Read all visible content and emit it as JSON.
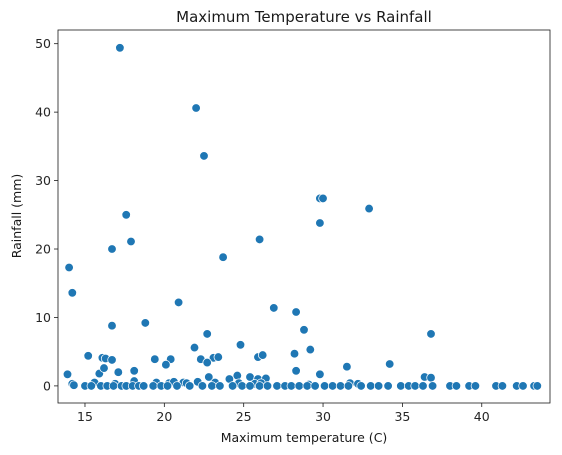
{
  "chart_data": {
    "type": "scatter",
    "title": "Maximum Temperature vs Rainfall",
    "xlabel": "Maximum temperature (C)",
    "ylabel": "Rainfall (mm)",
    "xlim": [
      13.3,
      44.3
    ],
    "ylim": [
      -2.5,
      52.0
    ],
    "xticks": [
      15,
      20,
      25,
      30,
      35,
      40
    ],
    "yticks": [
      0,
      10,
      20,
      30,
      40,
      50
    ],
    "grid": false,
    "marker_color": "#1f77b4",
    "marker_edge": "#ffffff",
    "x": [
      17.2,
      22.0,
      22.5,
      29.8,
      30.0,
      29.8,
      32.9,
      17.6,
      26.0,
      17.9,
      16.7,
      23.7,
      14.0,
      14.2,
      20.9,
      26.9,
      28.3,
      16.7,
      18.8,
      28.8,
      22.7,
      36.8,
      21.9,
      24.8,
      29.2,
      29.8,
      16.1,
      25.9,
      26.2,
      15.2,
      16.3,
      16.7,
      19.4,
      20.4,
      20.1,
      22.3,
      23.1,
      22.7,
      15.9,
      23.4,
      31.5,
      34.2,
      28.2,
      28.3,
      13.9,
      16.2,
      17.1,
      18.1,
      22.8,
      24.1,
      24.6,
      25.4,
      25.9,
      26.4,
      36.4,
      36.8,
      14.2,
      14.3,
      15.6,
      16.9,
      18.1,
      19.5,
      20.3,
      20.6,
      21.2,
      21.4,
      22.1,
      23.2,
      24.7,
      25.7,
      26.1,
      29.1,
      31.7,
      32.2,
      15.0,
      15.4,
      16.0,
      16.4,
      16.8,
      17.3,
      17.6,
      18.0,
      18.4,
      18.7,
      19.3,
      19.8,
      20.2,
      20.8,
      21.6,
      22.4,
      23.0,
      23.5,
      24.3,
      24.9,
      25.4,
      26.0,
      26.5,
      27.1,
      27.6,
      28.0,
      28.5,
      29.0,
      29.5,
      30.1,
      30.6,
      31.1,
      31.6,
      32.4,
      33.0,
      33.5,
      34.1,
      34.9,
      35.4,
      35.8,
      36.3,
      36.9,
      38.0,
      38.4,
      39.2,
      39.6,
      40.9,
      41.3,
      42.2,
      42.6,
      43.3,
      43.5
    ],
    "y": [
      49.4,
      40.6,
      33.6,
      27.4,
      27.4,
      23.8,
      25.9,
      25.0,
      21.4,
      21.1,
      20.0,
      18.8,
      17.3,
      13.6,
      12.2,
      11.4,
      10.8,
      8.8,
      9.2,
      8.2,
      7.6,
      7.6,
      5.6,
      6.0,
      5.3,
      1.7,
      4.1,
      4.2,
      4.5,
      4.4,
      4.0,
      3.8,
      3.9,
      3.9,
      3.1,
      3.9,
      4.1,
      3.4,
      1.8,
      4.2,
      2.8,
      3.2,
      4.7,
      2.2,
      1.7,
      2.6,
      2.0,
      2.2,
      1.3,
      1.0,
      1.5,
      1.3,
      1.0,
      1.1,
      1.3,
      1.2,
      0.3,
      0.1,
      0.5,
      0.3,
      0.7,
      0.5,
      0.4,
      0.6,
      0.5,
      0.4,
      0.6,
      0.5,
      0.4,
      0.3,
      0.4,
      0.2,
      0.4,
      0.3,
      0,
      0,
      0,
      0,
      0,
      0,
      0,
      0,
      0,
      0,
      0,
      0,
      0,
      0,
      0,
      0,
      0,
      0,
      0,
      0,
      0,
      0,
      0,
      0,
      0,
      0,
      0,
      0,
      0,
      0,
      0,
      0,
      0,
      0,
      0,
      0,
      0,
      0,
      0,
      0,
      0,
      0,
      0,
      0,
      0,
      0,
      0,
      0,
      0,
      0,
      0,
      0
    ]
  }
}
